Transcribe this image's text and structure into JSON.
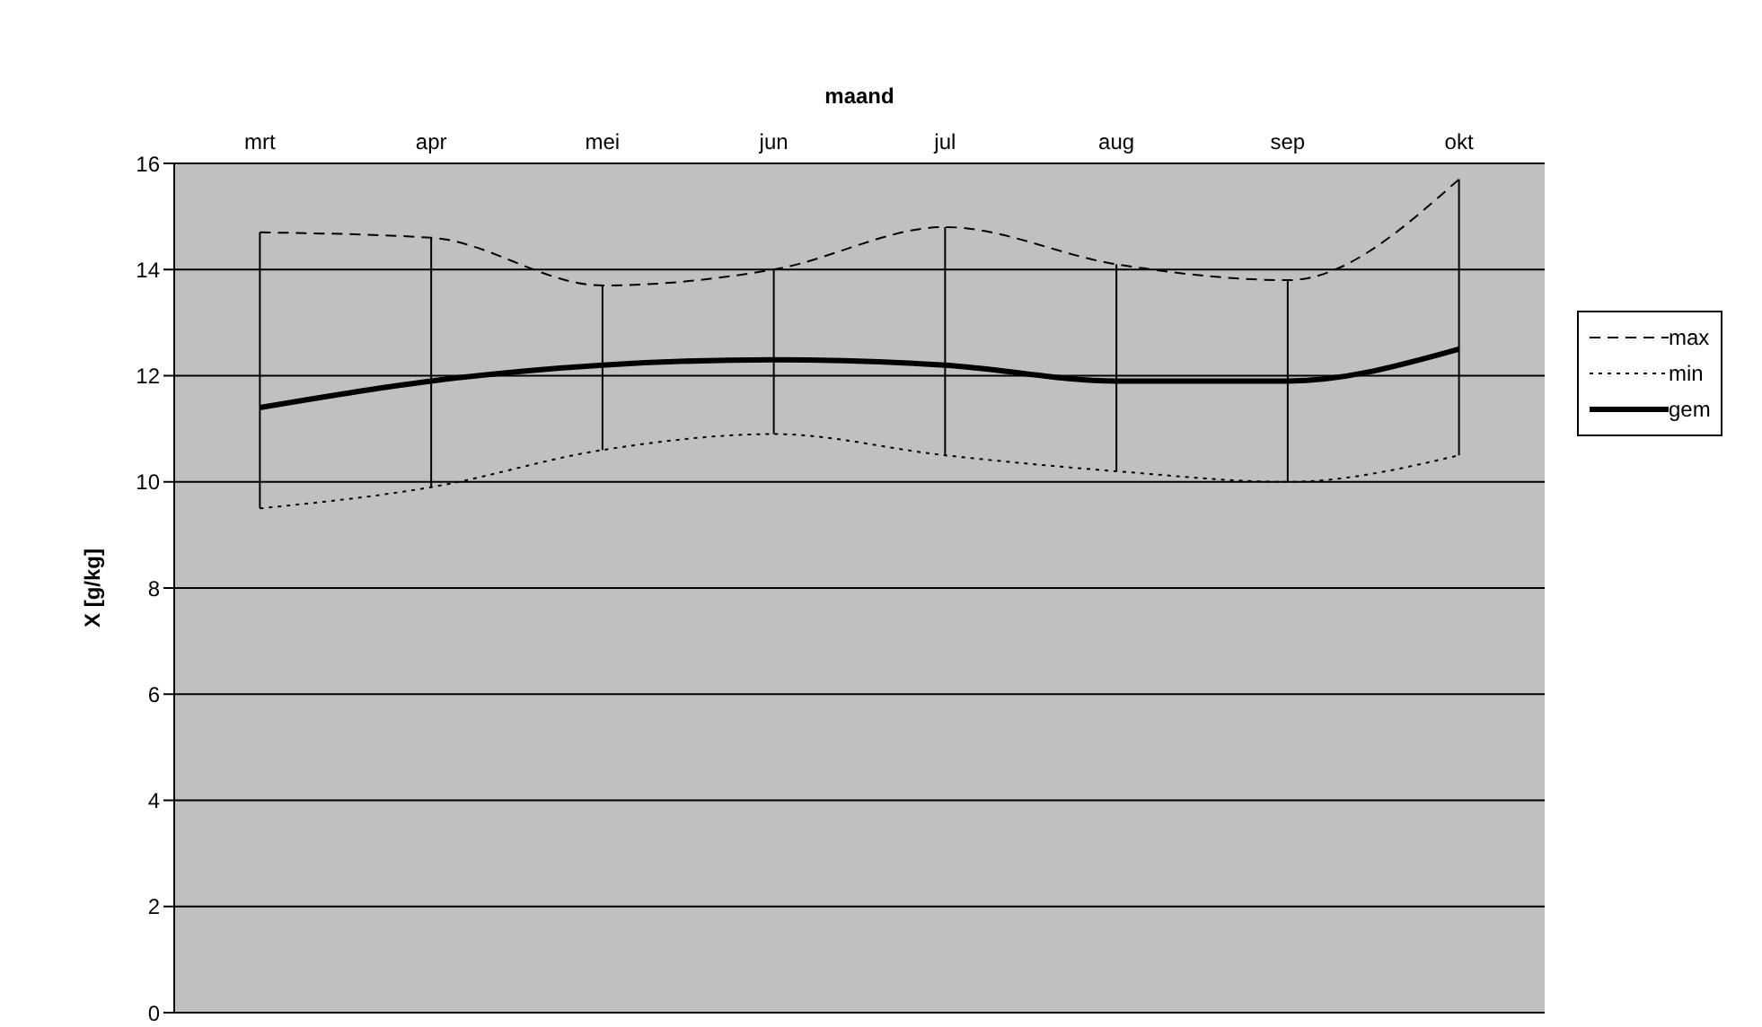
{
  "chart_data": {
    "type": "line",
    "xlabel": "maand",
    "ylabel": "X [g/kg]",
    "categories": [
      "mrt",
      "apr",
      "mei",
      "jun",
      "jul",
      "aug",
      "sep",
      "okt"
    ],
    "series": [
      {
        "name": "max",
        "color": "#000000",
        "line_style": "dashed",
        "values": [
          14.7,
          14.6,
          13.7,
          14.0,
          14.8,
          14.1,
          13.8,
          15.7
        ]
      },
      {
        "name": "min",
        "color": "#000000",
        "line_style": "dotted",
        "values": [
          9.5,
          9.9,
          10.6,
          10.9,
          10.5,
          10.2,
          10.0,
          10.5
        ]
      },
      {
        "name": "gem",
        "color": "#000000",
        "line_style": "solid",
        "values": [
          11.4,
          11.9,
          12.2,
          12.3,
          12.2,
          11.9,
          11.9,
          12.5
        ]
      }
    ],
    "ylim": [
      0,
      16
    ],
    "yticks": [
      0,
      2,
      4,
      6,
      8,
      10,
      12,
      14,
      16
    ],
    "grid": "y",
    "legend": "right",
    "marker": "none"
  }
}
